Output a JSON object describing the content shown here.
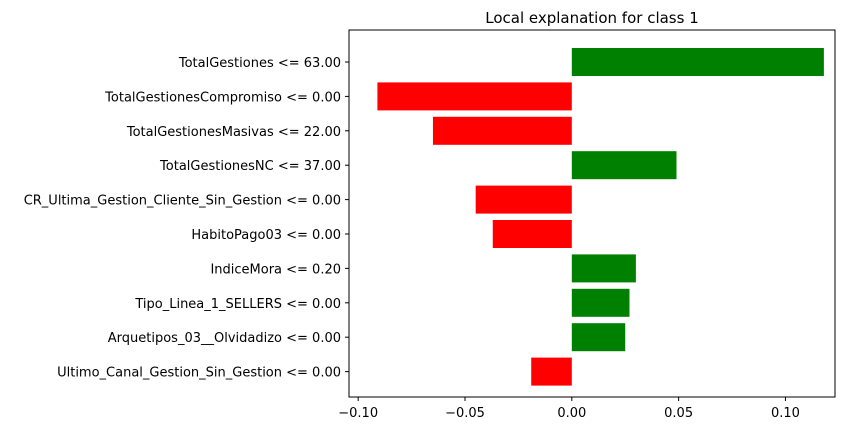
{
  "chart_data": {
    "type": "bar",
    "orientation": "horizontal",
    "title": "Local explanation for class 1",
    "xlabel": "",
    "ylabel": "",
    "xlim": [
      -0.1,
      0.12
    ],
    "xticks": [
      -0.1,
      -0.05,
      0.0,
      0.05,
      0.1
    ],
    "xtick_labels": [
      "−0.10",
      "−0.05",
      "0.00",
      "0.05",
      "0.10"
    ],
    "grid": false,
    "positive_color": "#008000",
    "negative_color": "#ff0000",
    "categories": [
      "TotalGestiones <= 63.00",
      "TotalGestionesCompromiso <= 0.00",
      "TotalGestionesMasivas <= 22.00",
      "TotalGestionesNC <= 37.00",
      "CR_Ultima_Gestion_Cliente_Sin_Gestion <= 0.00",
      "HabitoPago03 <= 0.00",
      "IndiceMora <= 0.20",
      "Tipo_Linea_1_SELLERS <= 0.00",
      "Arquetipos_03__Olvidadizo <= 0.00",
      "Ultimo_Canal_Gestion_Sin_Gestion <= 0.00"
    ],
    "values": [
      0.118,
      -0.091,
      -0.065,
      0.049,
      -0.045,
      -0.037,
      0.03,
      0.027,
      0.025,
      -0.019
    ]
  }
}
